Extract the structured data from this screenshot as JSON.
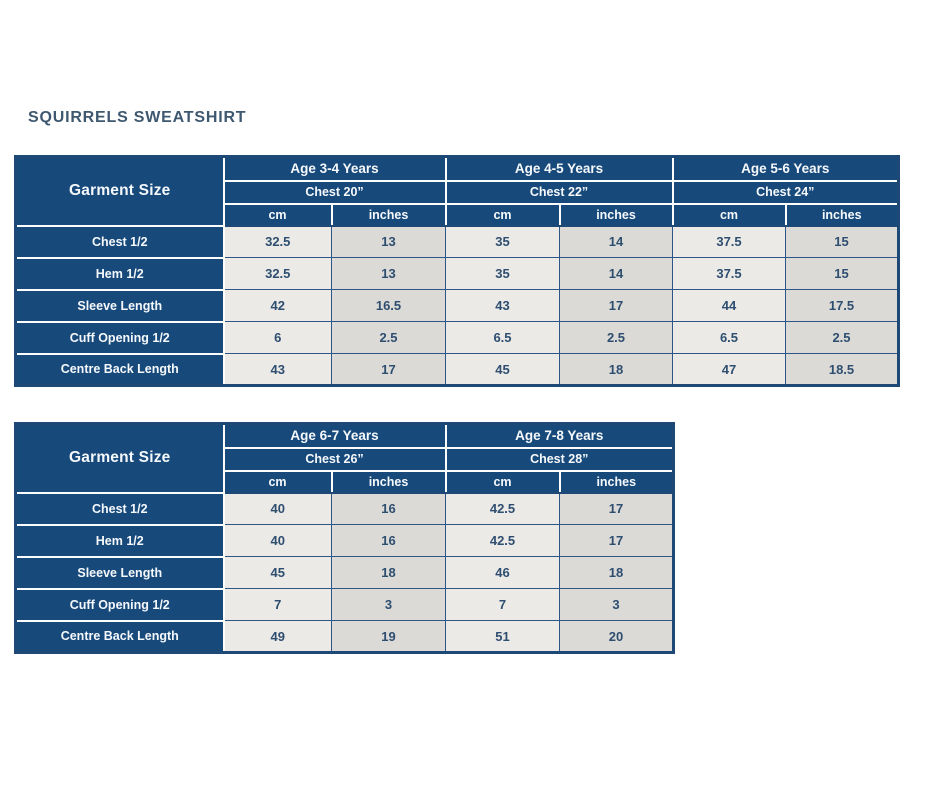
{
  "page": {
    "title": "SQUIRRELS SWEATSHIRT"
  },
  "colors": {
    "header_blue": "#17497B",
    "outer_border_blue": "#1E4976",
    "data_grid_blue": "#2D5585",
    "cell_cm_bg": "#ECEAE7",
    "cell_inches_bg": "#DCDAD7",
    "data_text": "#2E4E70",
    "header_text": "#F6F9FB",
    "title_text": "#3E5870"
  },
  "tables": [
    {
      "corner_label": "Garment Size",
      "unit_labels": [
        "cm",
        "inches"
      ],
      "groups": [
        {
          "age": "Age 3-4 Years",
          "chest": "Chest 20”"
        },
        {
          "age": "Age 4-5 Years",
          "chest": "Chest 22”"
        },
        {
          "age": "Age 5-6 Years",
          "chest": "Chest 24”"
        }
      ],
      "rows": [
        {
          "label": "Chest 1/2",
          "values": [
            "32.5",
            "13",
            "35",
            "14",
            "37.5",
            "15"
          ]
        },
        {
          "label": "Hem 1/2",
          "values": [
            "32.5",
            "13",
            "35",
            "14",
            "37.5",
            "15"
          ]
        },
        {
          "label": "Sleeve Length",
          "values": [
            "42",
            "16.5",
            "43",
            "17",
            "44",
            "17.5"
          ]
        },
        {
          "label": "Cuff Opening 1/2",
          "values": [
            "6",
            "2.5",
            "6.5",
            "2.5",
            "6.5",
            "2.5"
          ]
        },
        {
          "label": "Centre Back Length",
          "values": [
            "43",
            "17",
            "45",
            "18",
            "47",
            "18.5"
          ]
        }
      ]
    },
    {
      "corner_label": "Garment Size",
      "unit_labels": [
        "cm",
        "inches"
      ],
      "groups": [
        {
          "age": "Age 6-7 Years",
          "chest": "Chest 26”"
        },
        {
          "age": "Age 7-8 Years",
          "chest": "Chest 28”"
        }
      ],
      "rows": [
        {
          "label": "Chest 1/2",
          "values": [
            "40",
            "16",
            "42.5",
            "17"
          ]
        },
        {
          "label": "Hem 1/2",
          "values": [
            "40",
            "16",
            "42.5",
            "17"
          ]
        },
        {
          "label": "Sleeve Length",
          "values": [
            "45",
            "18",
            "46",
            "18"
          ]
        },
        {
          "label": "Cuff Opening 1/2",
          "values": [
            "7",
            "3",
            "7",
            "3"
          ]
        },
        {
          "label": "Centre Back Length",
          "values": [
            "49",
            "19",
            "51",
            "20"
          ]
        }
      ]
    }
  ],
  "chart_data": [
    {
      "type": "table",
      "title": "SQUIRRELS SWEATSHIRT — Ages 3-6",
      "column_groups": [
        "Age 3-4 Years (Chest 20”)",
        "Age 4-5 Years (Chest 22”)",
        "Age 5-6 Years (Chest 24”)"
      ],
      "columns": [
        "Garment Size",
        "cm",
        "inches",
        "cm",
        "inches",
        "cm",
        "inches"
      ],
      "rows": [
        [
          "Chest 1/2",
          32.5,
          13,
          35,
          14,
          37.5,
          15
        ],
        [
          "Hem 1/2",
          32.5,
          13,
          35,
          14,
          37.5,
          15
        ],
        [
          "Sleeve Length",
          42,
          16.5,
          43,
          17,
          44,
          17.5
        ],
        [
          "Cuff Opening 1/2",
          6,
          2.5,
          6.5,
          2.5,
          6.5,
          2.5
        ],
        [
          "Centre Back Length",
          43,
          17,
          45,
          18,
          47,
          18.5
        ]
      ]
    },
    {
      "type": "table",
      "title": "SQUIRRELS SWEATSHIRT — Ages 6-8",
      "column_groups": [
        "Age 6-7 Years (Chest 26”)",
        "Age 7-8 Years (Chest 28”)"
      ],
      "columns": [
        "Garment Size",
        "cm",
        "inches",
        "cm",
        "inches"
      ],
      "rows": [
        [
          "Chest 1/2",
          40,
          16,
          42.5,
          17
        ],
        [
          "Hem 1/2",
          40,
          16,
          42.5,
          17
        ],
        [
          "Sleeve Length",
          45,
          18,
          46,
          18
        ],
        [
          "Cuff Opening 1/2",
          7,
          3,
          7,
          3
        ],
        [
          "Centre Back Length",
          49,
          19,
          51,
          20
        ]
      ]
    }
  ]
}
